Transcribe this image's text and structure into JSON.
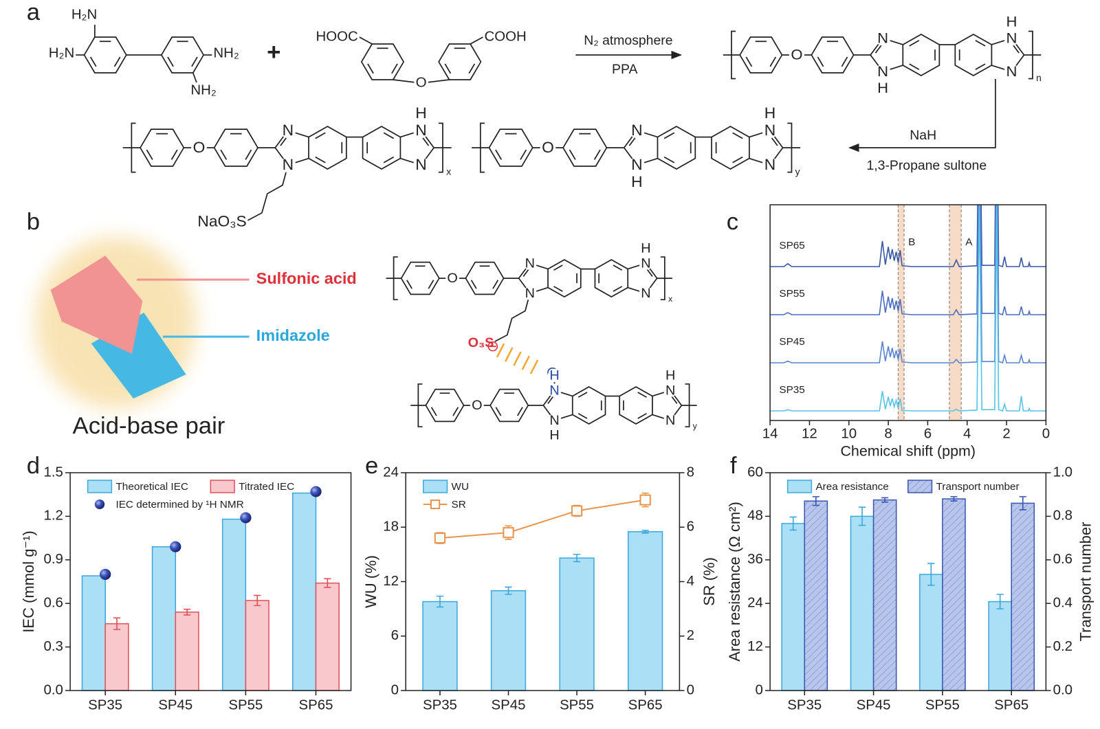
{
  "scheme": {
    "panel_label": "a",
    "atoms": {
      "N": "N",
      "H": "H",
      "O": "O"
    },
    "monomer1": {
      "groups": [
        "H₂N",
        "H₂N",
        "NH₂",
        "NH₂"
      ]
    },
    "monomer2": {
      "groups": [
        "HOOC",
        "COOH"
      ]
    },
    "plus": "+",
    "step1": {
      "above": "N₂ atmosphere",
      "below": "PPA"
    },
    "step2": {
      "above": "NaH",
      "below": "1,3-Propane sultone"
    },
    "product_repeat": "n",
    "copolymer": {
      "repeats": [
        "x",
        "y"
      ],
      "side_group": "NaO₃S"
    }
  },
  "panel_b": {
    "panel_label": "b",
    "labels": {
      "acid": "Sulfonic acid",
      "base": "Imidazole",
      "pair": "Acid-base pair"
    },
    "acid_group": "O₃S",
    "charges": [
      "⊖",
      "⊕"
    ],
    "repeats": [
      "x",
      "y"
    ]
  },
  "chart_data": [
    {
      "type": "line",
      "panel_label": "c",
      "xlabel": "Chemical shift (ppm)",
      "xlim": [
        14,
        0
      ],
      "xticks": [
        14,
        12,
        10,
        8,
        6,
        4,
        2,
        0
      ],
      "x": [
        14,
        13.3,
        13.1,
        12.9,
        8.45,
        8.3,
        8.15,
        8.0,
        7.9,
        7.8,
        7.7,
        7.6,
        7.5,
        7.4,
        7.3,
        6.8,
        4.7,
        4.55,
        4.4,
        3.5,
        3.38,
        3.25,
        2.6,
        2.5,
        2.4,
        2.2,
        2.1,
        2.0,
        1.35,
        1.25,
        1.15,
        0.9,
        0.85,
        0.8,
        0
      ],
      "series": [
        {
          "name": "SP65",
          "color": "#3a57a5",
          "values": [
            0,
            0,
            7,
            0,
            0,
            62,
            5,
            48,
            18,
            42,
            14,
            36,
            10,
            40,
            2,
            0,
            0,
            16,
            0,
            2,
            500,
            3,
            3,
            500,
            3,
            0,
            24,
            0,
            0,
            22,
            0,
            0,
            9,
            0,
            0
          ]
        },
        {
          "name": "SP55",
          "color": "#4a6cc0",
          "values": [
            0,
            0,
            5,
            0,
            0,
            58,
            5,
            44,
            16,
            40,
            12,
            34,
            9,
            38,
            2,
            0,
            0,
            12,
            0,
            2,
            500,
            3,
            3,
            500,
            3,
            0,
            20,
            0,
            0,
            20,
            0,
            0,
            8,
            0,
            0
          ]
        },
        {
          "name": "SP45",
          "color": "#5a84d0",
          "values": [
            0,
            0,
            4,
            0,
            0,
            52,
            4,
            40,
            14,
            36,
            11,
            30,
            8,
            34,
            2,
            0,
            0,
            8,
            0,
            2,
            500,
            3,
            3,
            500,
            3,
            0,
            18,
            0,
            0,
            18,
            0,
            0,
            7,
            0,
            0
          ]
        },
        {
          "name": "SP35",
          "color": "#56c4e8",
          "values": [
            0,
            0,
            3,
            0,
            0,
            48,
            4,
            34,
            12,
            30,
            10,
            26,
            7,
            30,
            1,
            0,
            0,
            4,
            0,
            2,
            500,
            3,
            3,
            500,
            3,
            0,
            16,
            0,
            0,
            36,
            0,
            0,
            6,
            0,
            0
          ]
        }
      ],
      "highlights": [
        {
          "label": "B",
          "range": [
            7.5,
            7.2
          ]
        },
        {
          "label": "A",
          "range": [
            4.9,
            4.3
          ]
        }
      ],
      "highlight_color": "#f6cfb4"
    },
    {
      "type": "bar",
      "panel_label": "d",
      "ylabel": "IEC (mmol g⁻¹)",
      "categories": [
        "SP35",
        "SP45",
        "SP55",
        "SP65"
      ],
      "ylim": [
        0,
        1.5
      ],
      "yticks": [
        {
          "value": 0,
          "label": "0.0"
        },
        0.3,
        0.6,
        0.9,
        1.2,
        1.5
      ],
      "legend": "upper left",
      "legend_columns": 2,
      "series": [
        {
          "name": "Theoretical IEC",
          "color": "#aadff6",
          "edge": "#3aa8dc",
          "values": [
            0.79,
            0.99,
            1.18,
            1.36
          ]
        },
        {
          "name": "Titrated IEC",
          "color": "#f9c8cc",
          "edge": "#e0505a",
          "values": [
            0.46,
            0.54,
            0.62,
            0.74
          ],
          "errors": [
            0.04,
            0.02,
            0.035,
            0.03
          ]
        },
        {
          "name": "IEC determined by ¹H NMR",
          "type": "scatter",
          "color": "#2c3f9c",
          "values": [
            0.8,
            0.99,
            1.19,
            1.37
          ]
        }
      ]
    },
    {
      "type": "bar",
      "panel_label": "e",
      "ylabel": "WU (%)",
      "y2label": "SR (%)",
      "categories": [
        "SP35",
        "SP45",
        "SP55",
        "SP65"
      ],
      "ylim": [
        0,
        24
      ],
      "yticks": [
        0,
        6,
        12,
        18,
        24
      ],
      "y2lim": [
        0,
        8
      ],
      "y2ticks": [
        0,
        2,
        4,
        6,
        8
      ],
      "legend": "upper left",
      "legend_columns": 1,
      "series": [
        {
          "name": "WU",
          "color": "#aadff6",
          "edge": "#3aa8dc",
          "values": [
            9.8,
            11.0,
            14.6,
            17.5
          ],
          "errors": [
            0.6,
            0.4,
            0.4,
            0.15
          ]
        },
        {
          "name": "SR",
          "type": "line",
          "axis": "y2",
          "color": "#e8944a",
          "marker": "open-square",
          "values": [
            5.6,
            5.8,
            6.6,
            7.0
          ],
          "errors": [
            0.2,
            0.25,
            0.2,
            0.25
          ]
        }
      ]
    },
    {
      "type": "bar",
      "panel_label": "f",
      "ylabel": "Area resistance (Ω cm²)",
      "y2label": "Transport number",
      "categories": [
        "SP35",
        "SP45",
        "SP55",
        "SP65"
      ],
      "ylim": [
        0,
        60
      ],
      "yticks": [
        0,
        12,
        24,
        36,
        48,
        60
      ],
      "y2lim": [
        0,
        1
      ],
      "y2ticks": [
        {
          "value": 0,
          "label": "0.0"
        },
        0.2,
        0.4,
        0.6,
        0.8,
        {
          "value": 1,
          "label": "1.0"
        }
      ],
      "legend": "upper center",
      "legend_columns": 2,
      "series": [
        {
          "name": "Area resistance",
          "color": "#aadff6",
          "edge": "#3aa8dc",
          "values": [
            46,
            48,
            32,
            24.5
          ],
          "errors": [
            1.8,
            2.5,
            3.0,
            2.0
          ]
        },
        {
          "name": "Transport number",
          "axis": "y2",
          "color": "#b9c6ec",
          "edge": "#3a55b0",
          "pattern": "hatch",
          "values": [
            0.87,
            0.875,
            0.88,
            0.86
          ],
          "errors": [
            0.02,
            0.01,
            0.01,
            0.03
          ]
        }
      ]
    }
  ]
}
